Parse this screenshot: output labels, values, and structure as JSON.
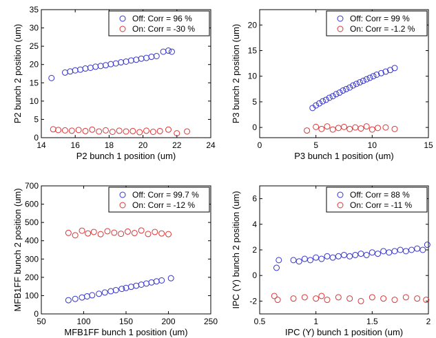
{
  "chart_data": [
    {
      "type": "scatter",
      "xlabel": "P2 bunch 1 position (um)",
      "ylabel": "P2 bunch 2 position (um)",
      "xlim": [
        14,
        24
      ],
      "ylim": [
        0,
        35
      ],
      "xticks": [
        14,
        16,
        18,
        20,
        22,
        24
      ],
      "yticks": [
        0,
        5,
        10,
        15,
        20,
        25,
        30,
        35
      ],
      "xtick_labels": [
        "14",
        "16",
        "18",
        "20",
        "22",
        "24"
      ],
      "ytick_labels": [
        "0",
        "5",
        "10",
        "15",
        "20",
        "25",
        "30",
        "35"
      ],
      "legend_position": "top-right",
      "series": [
        {
          "name": "Off: Corr = 96 %",
          "color": "#3333cc",
          "x": [
            14.6,
            15.4,
            15.7,
            16.0,
            16.3,
            16.6,
            16.9,
            17.2,
            17.5,
            17.8,
            18.1,
            18.4,
            18.7,
            19.0,
            19.3,
            19.6,
            19.9,
            20.2,
            20.5,
            20.8,
            21.2,
            21.5,
            21.7
          ],
          "y": [
            16.3,
            17.8,
            18.1,
            18.4,
            18.6,
            18.9,
            19.1,
            19.4,
            19.6,
            19.8,
            20.1,
            20.3,
            20.6,
            20.8,
            21.1,
            21.3,
            21.6,
            21.8,
            22.1,
            22.3,
            23.5,
            23.8,
            23.5
          ]
        },
        {
          "name": "On: Corr = -30 %",
          "color": "#dd3333",
          "x": [
            14.7,
            15.0,
            15.4,
            15.8,
            16.2,
            16.6,
            17.0,
            17.4,
            17.8,
            18.2,
            18.6,
            19.0,
            19.4,
            19.8,
            20.2,
            20.6,
            21.0,
            21.5,
            22.0,
            22.6
          ],
          "y": [
            2.3,
            2.1,
            2.0,
            1.9,
            2.1,
            1.8,
            2.2,
            1.7,
            2.0,
            1.6,
            1.9,
            1.7,
            1.8,
            1.5,
            1.9,
            1.6,
            1.8,
            2.2,
            1.2,
            1.7
          ]
        }
      ]
    },
    {
      "type": "scatter",
      "xlabel": "P3 bunch 1 position (um)",
      "ylabel": "P3 bunch 2 position (um)",
      "xlim": [
        0,
        15
      ],
      "ylim": [
        -2,
        23
      ],
      "xticks": [
        0,
        5,
        10,
        15
      ],
      "yticks": [
        0,
        5,
        10,
        15,
        20
      ],
      "xtick_labels": [
        "0",
        "5",
        "10",
        "15"
      ],
      "ytick_labels": [
        "0",
        "5",
        "10",
        "15",
        "20"
      ],
      "legend_position": "top-right",
      "series": [
        {
          "name": "Off: Corr = 99 %",
          "color": "#3333cc",
          "x": [
            4.7,
            5.0,
            5.3,
            5.6,
            5.9,
            6.2,
            6.5,
            6.8,
            7.1,
            7.4,
            7.7,
            8.0,
            8.3,
            8.6,
            8.9,
            9.2,
            9.5,
            9.8,
            10.1,
            10.4,
            10.8,
            11.2,
            11.6,
            12.0
          ],
          "y": [
            3.8,
            4.3,
            4.7,
            5.1,
            5.4,
            5.8,
            6.1,
            6.5,
            6.8,
            7.2,
            7.5,
            7.8,
            8.2,
            8.5,
            8.8,
            9.1,
            9.4,
            9.7,
            10.0,
            10.3,
            10.6,
            10.9,
            11.2,
            11.6
          ]
        },
        {
          "name": "On: Corr = -1.2 %",
          "color": "#dd3333",
          "x": [
            4.2,
            5.0,
            5.5,
            6.0,
            6.5,
            7.0,
            7.5,
            8.0,
            8.5,
            9.0,
            9.5,
            10.0,
            10.5,
            11.2,
            12.0
          ],
          "y": [
            -0.6,
            0.1,
            -0.3,
            0.2,
            -0.4,
            -0.1,
            0.1,
            -0.3,
            0.0,
            -0.2,
            0.2,
            -0.4,
            -0.1,
            0.0,
            -0.3
          ]
        }
      ]
    },
    {
      "type": "scatter",
      "xlabel": "MFB1FF bunch 1 position (um)",
      "ylabel": "MFB1FF bunch 2 position (um)",
      "xlim": [
        50,
        250
      ],
      "ylim": [
        0,
        700
      ],
      "xticks": [
        50,
        100,
        150,
        200,
        250
      ],
      "yticks": [
        0,
        100,
        200,
        300,
        400,
        500,
        600,
        700
      ],
      "xtick_labels": [
        "50",
        "100",
        "150",
        "200",
        "250"
      ],
      "ytick_labels": [
        "0",
        "100",
        "200",
        "300",
        "400",
        "500",
        "600",
        "700"
      ],
      "legend_position": "top-right",
      "series": [
        {
          "name": "Off: Corr = 99.7 %",
          "color": "#3333cc",
          "x": [
            82,
            90,
            98,
            104,
            110,
            118,
            125,
            132,
            138,
            145,
            150,
            156,
            162,
            168,
            174,
            180,
            186,
            192,
            203
          ],
          "y": [
            75,
            82,
            90,
            96,
            102,
            110,
            117,
            124,
            130,
            137,
            142,
            148,
            154,
            160,
            166,
            172,
            178,
            183,
            195
          ]
        },
        {
          "name": "On: Corr = -12 %",
          "color": "#dd3333",
          "x": [
            82,
            90,
            98,
            105,
            112,
            120,
            128,
            136,
            144,
            152,
            160,
            168,
            176,
            184,
            192,
            200
          ],
          "y": [
            443,
            430,
            455,
            440,
            448,
            436,
            452,
            444,
            438,
            450,
            442,
            456,
            437,
            448,
            440,
            436
          ]
        }
      ]
    },
    {
      "type": "scatter",
      "xlabel": "IPC (Y) bunch 1 position (um)",
      "ylabel": "IPC (Y) bunch 2 position (um)",
      "xlim": [
        0.5,
        2
      ],
      "ylim": [
        -3,
        7
      ],
      "xticks": [
        0.5,
        1,
        1.5,
        2
      ],
      "yticks": [
        -2,
        0,
        2,
        4,
        6
      ],
      "xtick_labels": [
        "0.5",
        "1",
        "1.5",
        "2"
      ],
      "ytick_labels": [
        "-2",
        "0",
        "2",
        "4",
        "6"
      ],
      "legend_position": "top-right",
      "series": [
        {
          "name": "Off: Corr = 88 %",
          "color": "#3333cc",
          "x": [
            0.65,
            0.67,
            0.8,
            0.85,
            0.9,
            0.95,
            1.0,
            1.05,
            1.1,
            1.15,
            1.2,
            1.25,
            1.3,
            1.35,
            1.4,
            1.45,
            1.5,
            1.55,
            1.6,
            1.65,
            1.7,
            1.75,
            1.8,
            1.85,
            1.9,
            1.95,
            1.99
          ],
          "y": [
            0.6,
            1.2,
            1.2,
            1.1,
            1.3,
            1.2,
            1.4,
            1.3,
            1.5,
            1.4,
            1.5,
            1.6,
            1.5,
            1.6,
            1.7,
            1.6,
            1.8,
            1.7,
            1.9,
            1.8,
            1.9,
            2.0,
            1.9,
            2.0,
            2.1,
            2.0,
            2.4
          ]
        },
        {
          "name": "On: Corr = -11 %",
          "color": "#dd3333",
          "x": [
            0.63,
            0.66,
            0.8,
            0.9,
            1.0,
            1.05,
            1.1,
            1.2,
            1.3,
            1.4,
            1.5,
            1.6,
            1.7,
            1.8,
            1.9,
            1.98
          ],
          "y": [
            -1.6,
            -1.9,
            -1.8,
            -1.7,
            -1.8,
            -1.6,
            -1.9,
            -1.7,
            -1.8,
            -2.0,
            -1.7,
            -1.8,
            -1.9,
            -1.7,
            -1.8,
            -1.9
          ]
        }
      ]
    }
  ]
}
